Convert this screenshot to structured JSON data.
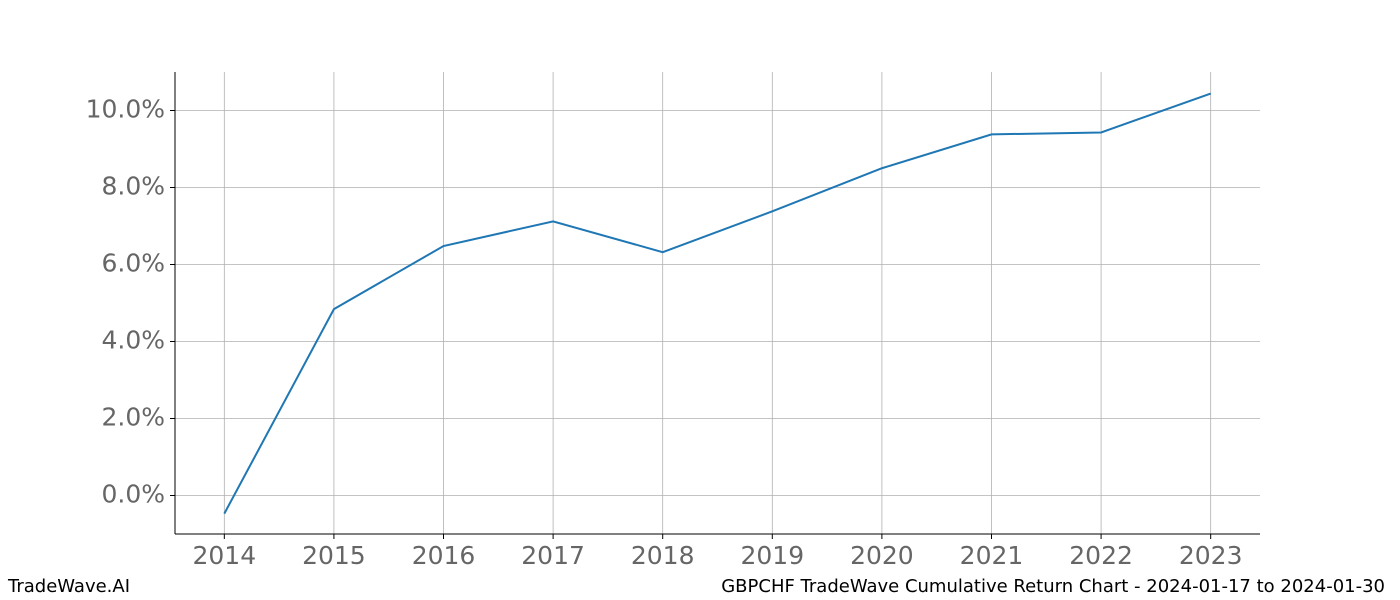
{
  "chart_data": {
    "type": "line",
    "x": [
      2014,
      2015,
      2016,
      2017,
      2018,
      2019,
      2020,
      2021,
      2022,
      2023
    ],
    "series": [
      {
        "name": "GBPCHF",
        "color": "#1f77b4",
        "values": [
          -0.47,
          4.84,
          6.48,
          7.12,
          6.32,
          7.38,
          8.5,
          9.38,
          9.43,
          10.44
        ]
      }
    ],
    "xlim": [
      2013.55,
      2023.45
    ],
    "xticks": [
      2014,
      2015,
      2016,
      2017,
      2018,
      2019,
      2020,
      2021,
      2022,
      2023
    ],
    "ylim": [
      -1.0,
      11.0
    ],
    "yticks": [
      {
        "value": 0,
        "label": "0.0%"
      },
      {
        "value": 2,
        "label": "2.0%"
      },
      {
        "value": 4,
        "label": "4.0%"
      },
      {
        "value": 6,
        "label": "6.0%"
      },
      {
        "value": 8,
        "label": "8.0%"
      },
      {
        "value": 10,
        "label": "10.0%"
      }
    ],
    "grid": true,
    "watermark": "TradeWave.AI",
    "caption": "GBPCHF TradeWave Cumulative Return Chart - 2024-01-17 to 2024-01-30"
  }
}
